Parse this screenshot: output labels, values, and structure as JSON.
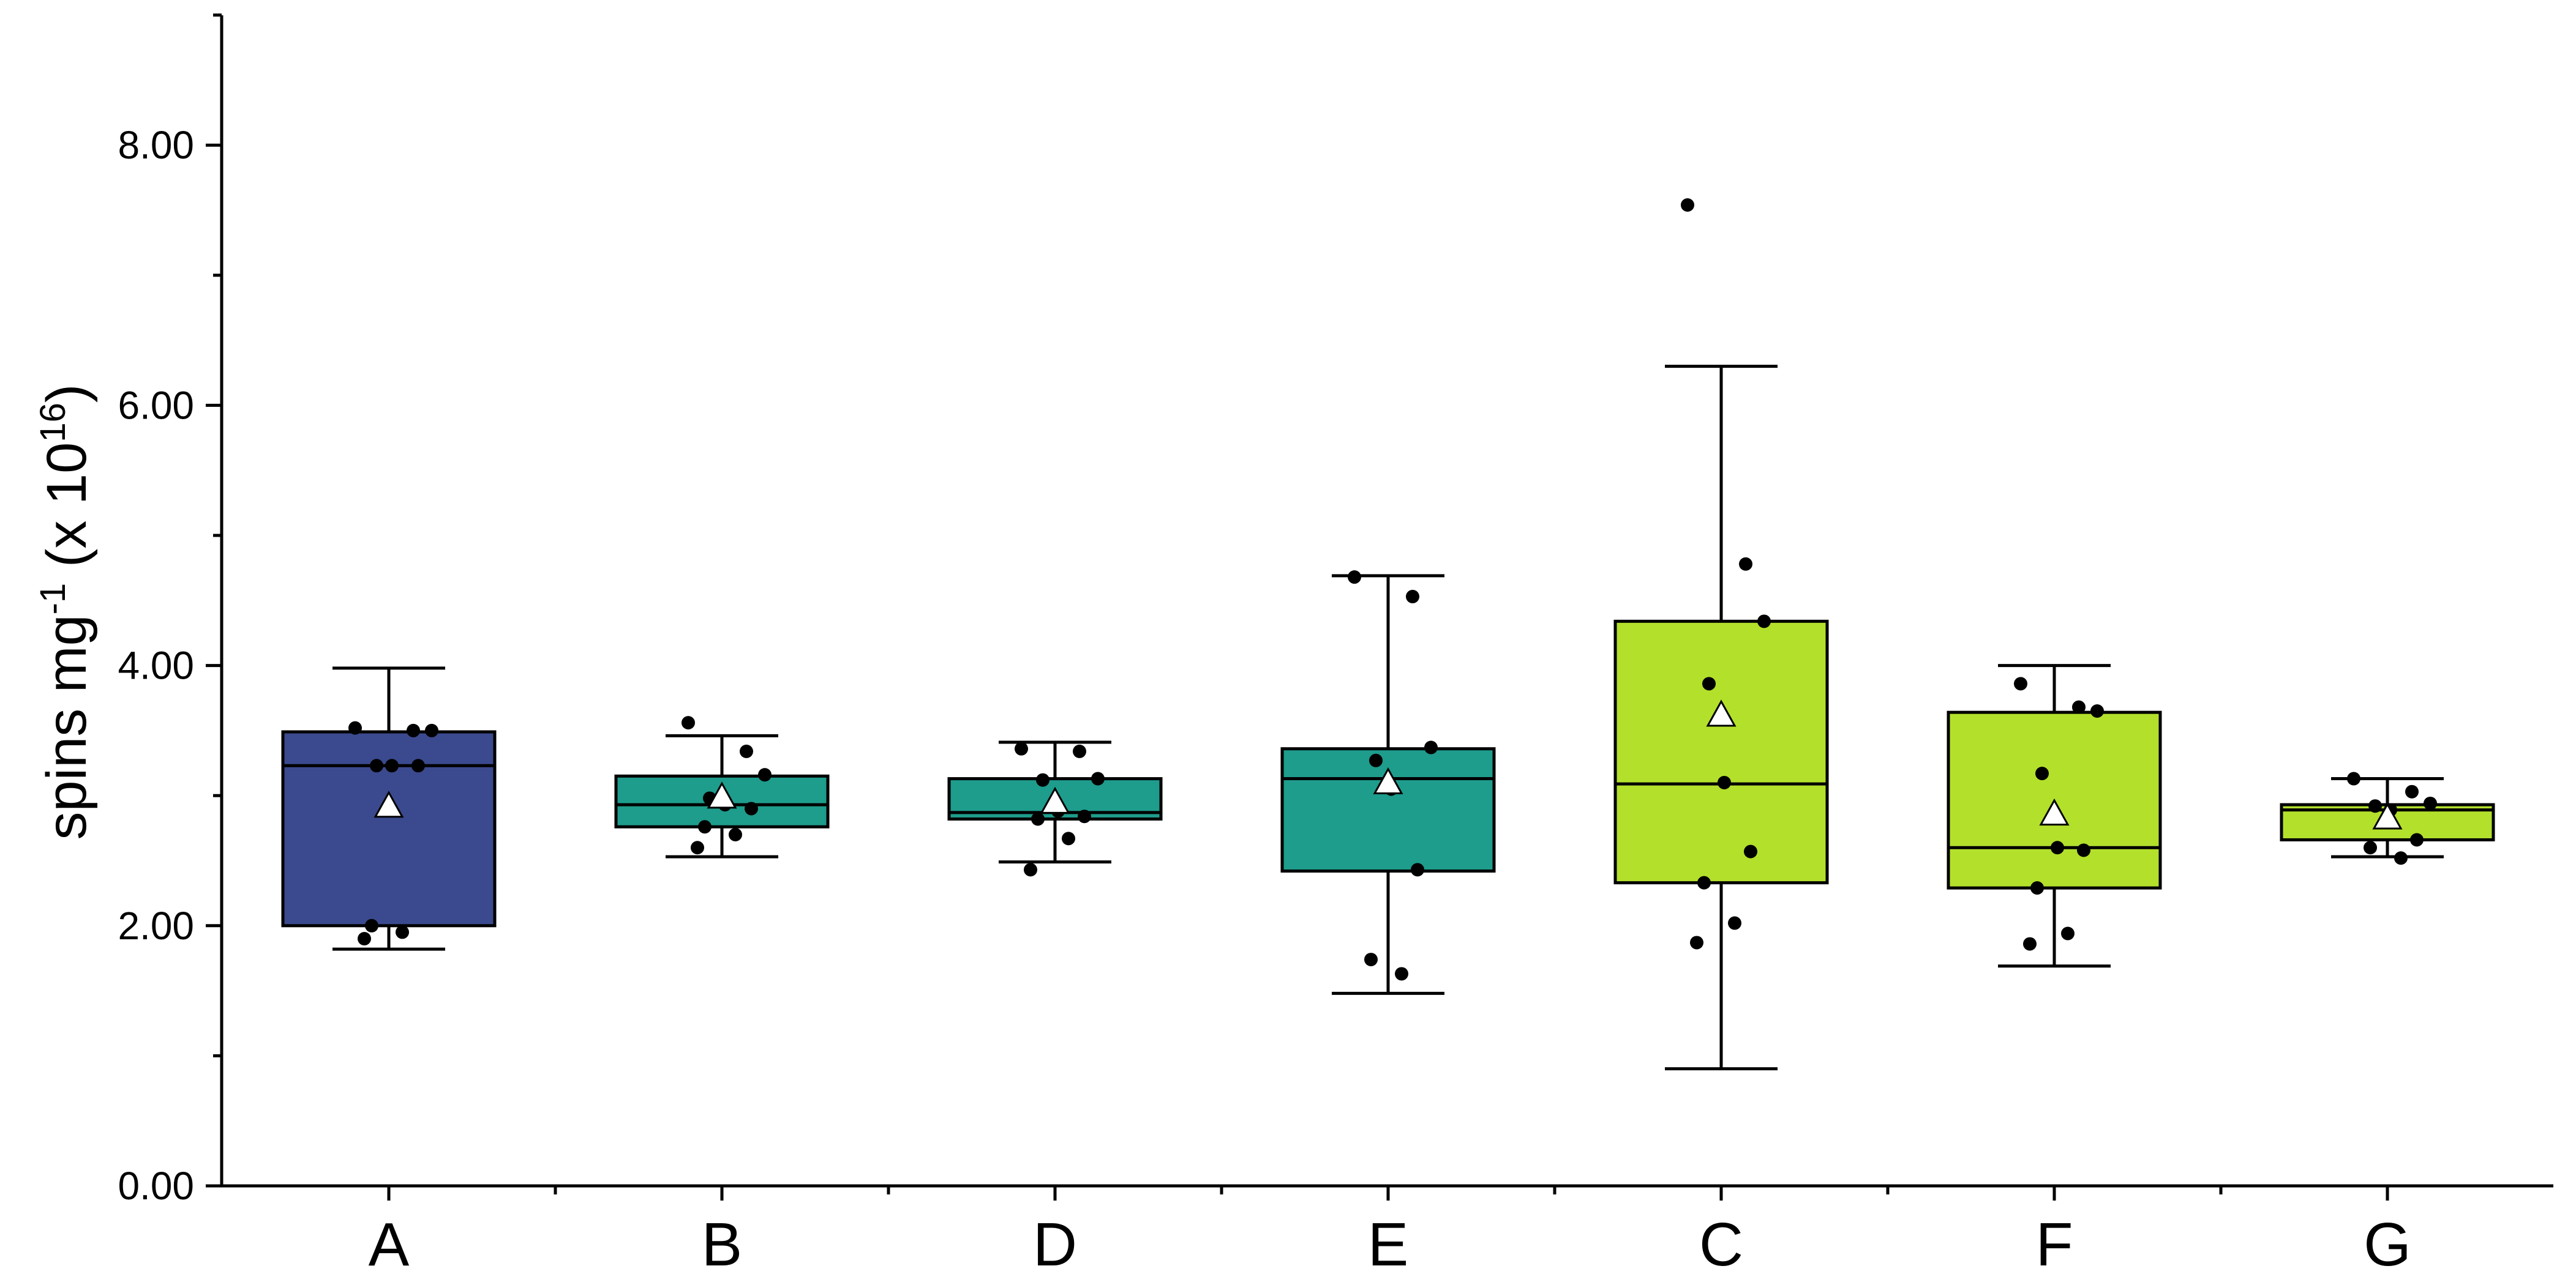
{
  "chart_data": {
    "type": "box",
    "xlabel": "",
    "ylabel": {
      "text": "spins mg",
      "sup1": "-1",
      "mid": " (x 10",
      "sup2": "16",
      "end": ")"
    },
    "ylim": [
      0,
      9
    ],
    "yticks": [
      0,
      2,
      4,
      6,
      8
    ],
    "ytick_labels": [
      "0.00",
      "2.00",
      "4.00",
      "6.00",
      "8.00"
    ],
    "minor_ticks": [
      1,
      3,
      5,
      7,
      9
    ],
    "grid": false,
    "legend": "none",
    "categories": [
      "A",
      "B",
      "D",
      "E",
      "C",
      "F",
      "G"
    ],
    "boxes": [
      {
        "label": "A",
        "color": "#3b4a8e",
        "whisker_low": 1.82,
        "q1": 2.0,
        "median": 3.23,
        "q3": 3.49,
        "whisker_high": 3.98,
        "mean": 2.92,
        "points": [
          3.52,
          3.5,
          3.5,
          3.23,
          3.23,
          3.23,
          2.0,
          1.95,
          1.9
        ]
      },
      {
        "label": "B",
        "color": "#1e9c8c",
        "whisker_low": 2.53,
        "q1": 2.76,
        "median": 2.93,
        "q3": 3.15,
        "whisker_high": 3.46,
        "mean": 2.99,
        "points": [
          3.56,
          3.34,
          3.16,
          2.98,
          2.93,
          2.9,
          2.76,
          2.7,
          2.6
        ]
      },
      {
        "label": "D",
        "color": "#1e9c8c",
        "whisker_low": 2.49,
        "q1": 2.82,
        "median": 2.87,
        "q3": 3.13,
        "whisker_high": 3.41,
        "mean": 2.95,
        "points": [
          3.36,
          3.34,
          3.13,
          3.12,
          2.88,
          2.84,
          2.82,
          2.67,
          2.43
        ]
      },
      {
        "label": "E",
        "color": "#1e9c8c",
        "whisker_low": 1.48,
        "q1": 2.42,
        "median": 3.13,
        "q3": 3.36,
        "whisker_high": 4.69,
        "mean": 3.1,
        "points": [
          4.68,
          4.53,
          3.37,
          3.27,
          3.05,
          2.43,
          1.74,
          1.63
        ]
      },
      {
        "label": "C",
        "color": "#b3e02b",
        "whisker_low": 0.9,
        "q1": 2.33,
        "median": 3.09,
        "q3": 4.34,
        "whisker_high": 6.3,
        "mean": 3.62,
        "points": [
          7.54,
          4.78,
          4.34,
          3.86,
          3.1,
          2.57,
          2.33,
          2.02,
          1.87
        ]
      },
      {
        "label": "F",
        "color": "#b3e02b",
        "whisker_low": 1.69,
        "q1": 2.29,
        "median": 2.6,
        "q3": 3.64,
        "whisker_high": 4.0,
        "mean": 2.86,
        "points": [
          3.86,
          3.68,
          3.65,
          3.17,
          2.6,
          2.58,
          2.29,
          1.94,
          1.86
        ]
      },
      {
        "label": "G",
        "color": "#b3e02b",
        "whisker_low": 2.53,
        "q1": 2.66,
        "median": 2.89,
        "q3": 2.93,
        "whisker_high": 3.13,
        "mean": 2.83,
        "points": [
          3.13,
          3.03,
          2.94,
          2.92,
          2.89,
          2.66,
          2.6,
          2.52
        ]
      }
    ]
  }
}
